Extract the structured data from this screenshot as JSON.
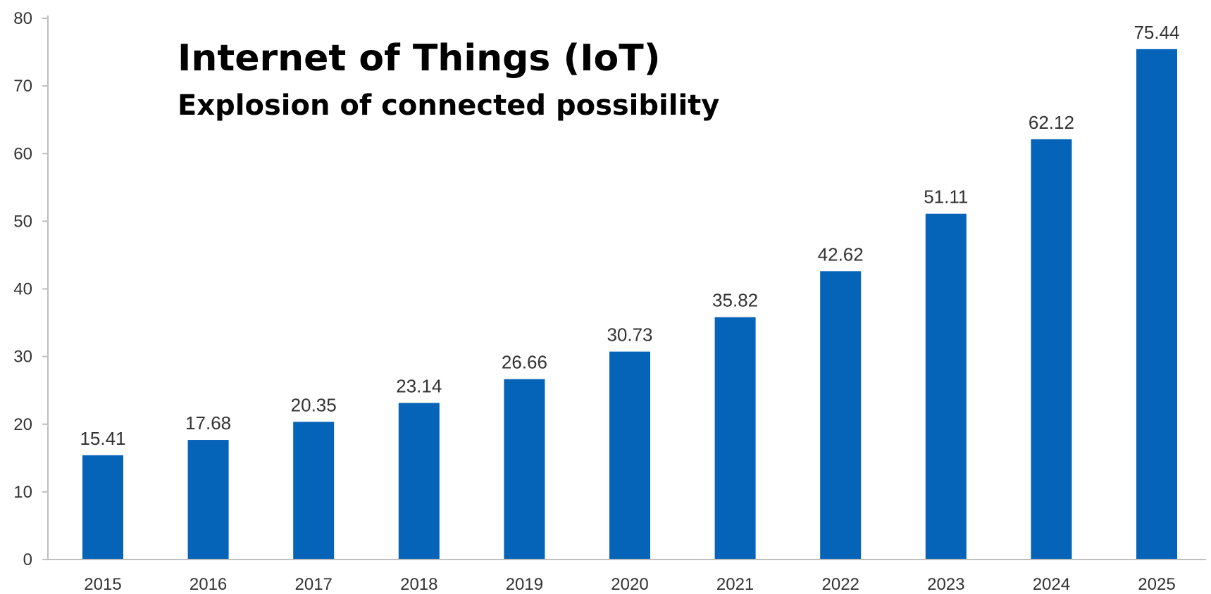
{
  "chart_data": {
    "type": "bar",
    "title": "Internet of Things (IoT)",
    "subtitle": "Explosion of connected possibility",
    "categories": [
      "2015",
      "2016",
      "2017",
      "2018",
      "2019",
      "2020",
      "2021",
      "2022",
      "2023",
      "2024",
      "2025"
    ],
    "values": [
      15.41,
      17.68,
      20.35,
      23.14,
      26.66,
      30.73,
      35.82,
      42.62,
      51.11,
      62.12,
      75.44
    ],
    "value_labels": [
      "15.41",
      "17.68",
      "20.35",
      "23.14",
      "26.66",
      "30.73",
      "35.82",
      "42.62",
      "51.11",
      "62.12",
      "75.44"
    ],
    "ylim": [
      0,
      80
    ],
    "yticks": [
      "0",
      "10",
      "20",
      "30",
      "40",
      "50",
      "60",
      "70",
      "80"
    ],
    "xlabel": "",
    "ylabel": "",
    "grid": false,
    "bar_color": "#0563b8",
    "axis_color": "#bfbfbf"
  }
}
